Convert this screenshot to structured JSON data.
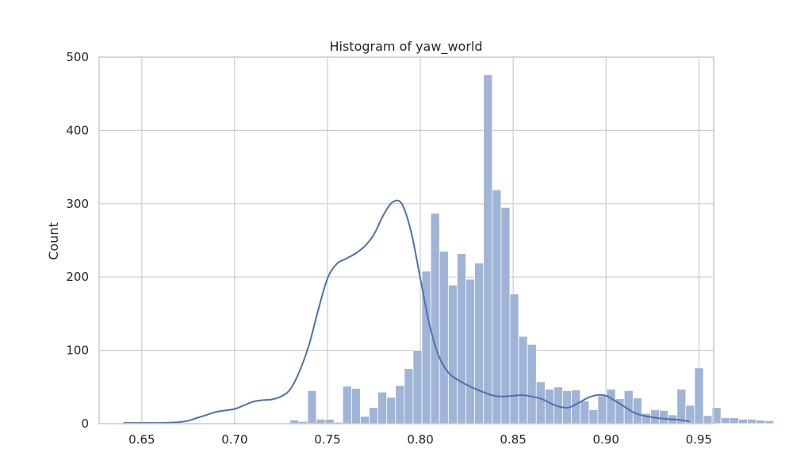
{
  "chart_data": {
    "type": "bar",
    "title": "Histogram of yaw_world",
    "xlabel": "",
    "ylabel": "Count",
    "xlim": [
      0.627,
      0.958
    ],
    "ylim": [
      0,
      500
    ],
    "xticks": [
      0.65,
      0.7,
      0.75,
      0.8,
      0.85,
      0.9,
      0.95
    ],
    "xtick_labels": [
      "0.65",
      "0.70",
      "0.75",
      "0.80",
      "0.85",
      "0.90",
      "0.95"
    ],
    "yticks": [
      0,
      100,
      200,
      300,
      400,
      500
    ],
    "ytick_labels": [
      "0",
      "100",
      "200",
      "300",
      "400",
      "500"
    ],
    "grid": true,
    "bin_start": 0.6398,
    "bin_width": 0.004737,
    "counts": [
      2,
      1,
      0,
      0,
      0,
      0,
      0,
      0,
      0,
      0,
      0,
      0,
      0,
      0,
      0,
      0,
      0,
      0,
      0,
      5,
      3,
      45,
      6,
      6,
      2,
      51,
      48,
      10,
      22,
      43,
      36,
      52,
      75,
      100,
      208,
      287,
      235,
      189,
      232,
      197,
      219,
      476,
      319,
      295,
      177,
      119,
      108,
      57,
      47,
      50,
      45,
      46,
      31,
      19,
      38,
      47,
      34,
      45,
      35,
      14,
      19,
      18,
      12,
      47,
      25,
      76,
      11,
      22,
      8,
      8,
      6,
      6,
      5,
      4
    ],
    "kde": {
      "x": [
        0.64,
        0.65,
        0.66,
        0.67,
        0.675,
        0.68,
        0.685,
        0.69,
        0.695,
        0.7,
        0.705,
        0.71,
        0.715,
        0.72,
        0.725,
        0.73,
        0.735,
        0.74,
        0.745,
        0.75,
        0.755,
        0.76,
        0.765,
        0.77,
        0.775,
        0.78,
        0.785,
        0.79,
        0.795,
        0.8,
        0.805,
        0.81,
        0.815,
        0.82,
        0.825,
        0.83,
        0.835,
        0.84,
        0.845,
        0.85,
        0.855,
        0.86,
        0.865,
        0.87,
        0.875,
        0.88,
        0.885,
        0.89,
        0.895,
        0.9,
        0.905,
        0.91,
        0.915,
        0.92,
        0.93,
        0.94,
        0.945
      ],
      "y": [
        1,
        1,
        1,
        2,
        4,
        8,
        12,
        16,
        18,
        20,
        25,
        30,
        32,
        33,
        37,
        47,
        72,
        107,
        155,
        198,
        218,
        225,
        232,
        242,
        258,
        284,
        302,
        300,
        262,
        198,
        134,
        92,
        70,
        60,
        53,
        47,
        42,
        38,
        37,
        38,
        39,
        37,
        34,
        28,
        23,
        22,
        28,
        35,
        39,
        38,
        31,
        23,
        15,
        11,
        7,
        5,
        3
      ]
    },
    "colors": {
      "bar_fill": "#9fb4d6",
      "bar_edge": "#ffffff",
      "kde_line": "#4c72b0",
      "grid": "#cccccc",
      "spine": "#cccccc"
    }
  }
}
